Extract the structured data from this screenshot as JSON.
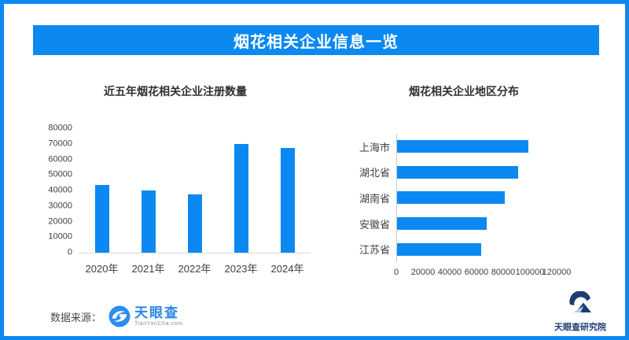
{
  "page": {
    "title": "烟花相关企业信息一览",
    "accent_color": "#0b89f0",
    "background_color": "#ffffff"
  },
  "footer": {
    "source_label": "数据来源：",
    "source_logo_text": "天眼查",
    "source_logo_subtext": "TianYanCha.com",
    "institute_name": "天眼查研究院",
    "institute_color": "#1d3e73",
    "logo_blue": "#2e86e8"
  },
  "chart_data": [
    {
      "type": "bar",
      "title": "近五年烟花相关企业注册数量",
      "categories": [
        "2020年",
        "2021年",
        "2022年",
        "2023年",
        "2024年"
      ],
      "values": [
        43500,
        39800,
        37600,
        69800,
        67500
      ],
      "xlabel": "",
      "ylabel": "",
      "ylim": [
        0,
        80000
      ],
      "y_ticks": [
        0,
        10000,
        20000,
        30000,
        40000,
        50000,
        60000,
        70000,
        80000
      ],
      "grid": false,
      "legend": false,
      "bar_color": "#0b89f0"
    },
    {
      "type": "bar-horizontal",
      "title": "烟花相关企业地区分布",
      "categories": [
        "上海市",
        "湖北省",
        "湖南省",
        "安徽省",
        "江苏省"
      ],
      "values": [
        98500,
        90500,
        80500,
        67000,
        63000
      ],
      "xlabel": "",
      "ylabel": "",
      "xlim": [
        0,
        120000
      ],
      "x_ticks": [
        0,
        20000,
        40000,
        60000,
        80000,
        100000,
        120000
      ],
      "grid": false,
      "legend": false,
      "bar_color": "#0b89f0"
    }
  ]
}
